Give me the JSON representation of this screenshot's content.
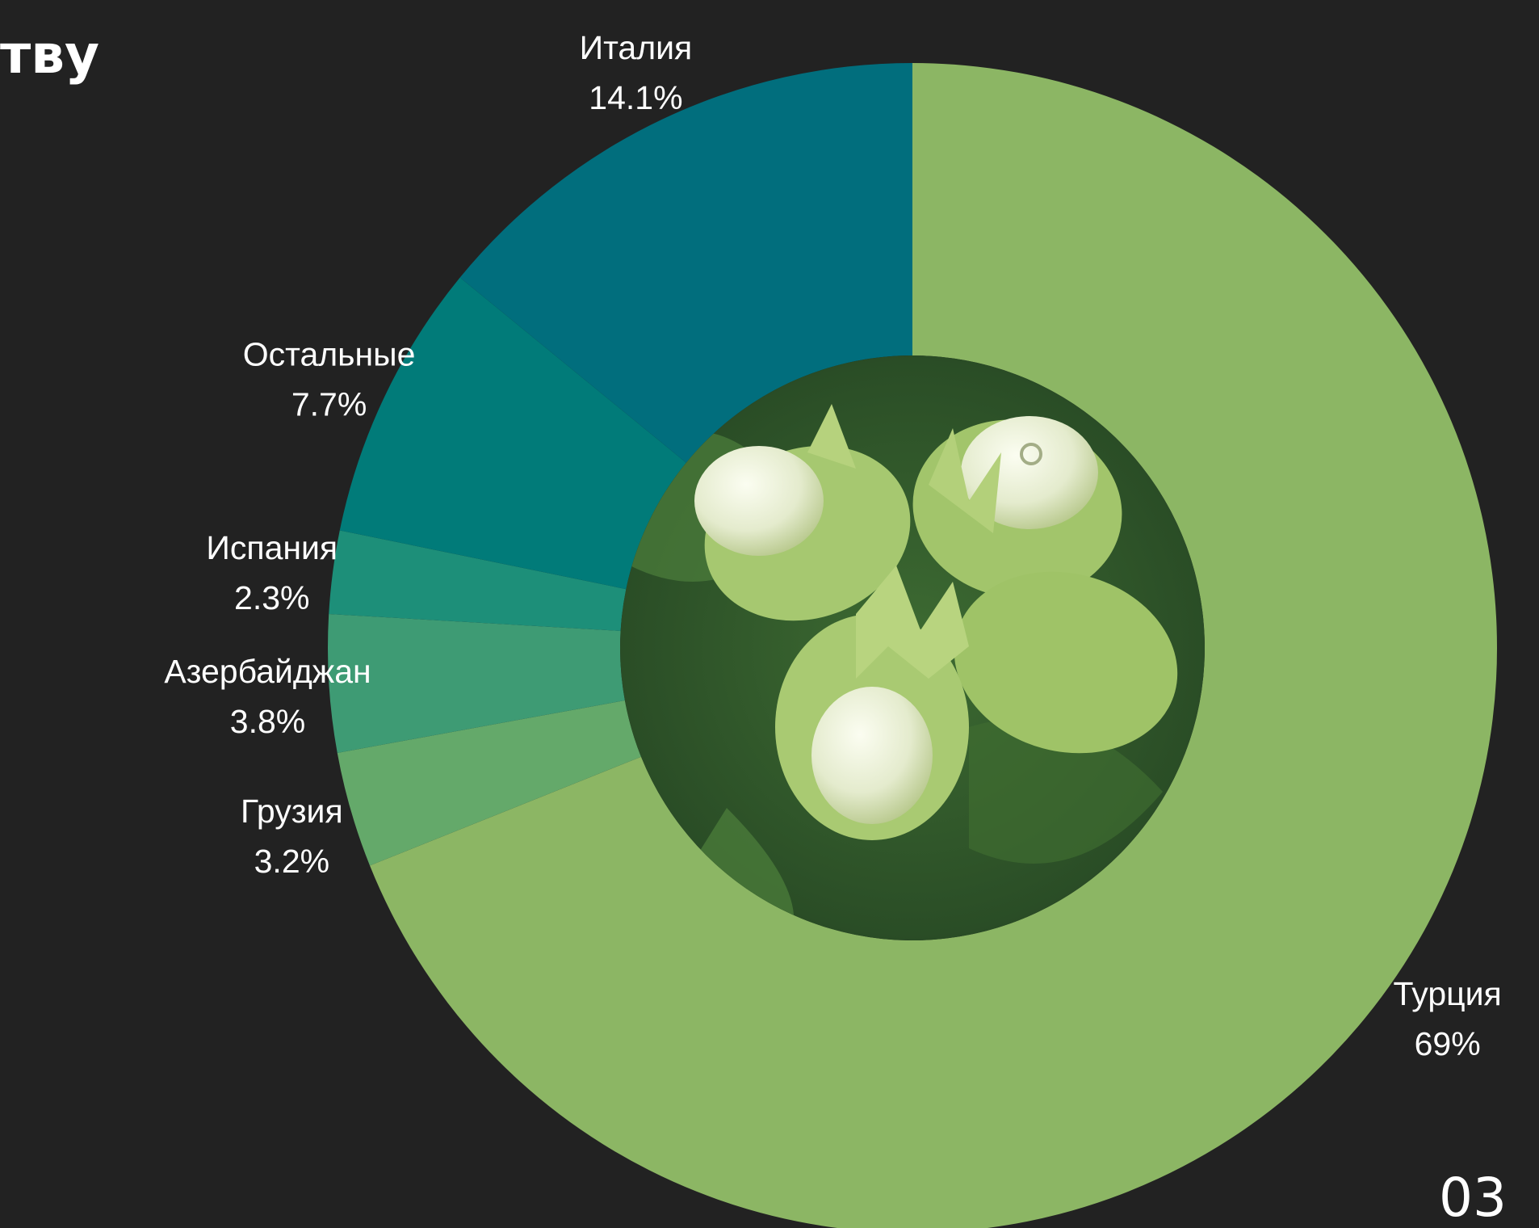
{
  "slide": {
    "title_fragment": "тву",
    "page_number": "03",
    "background_color": "#222222"
  },
  "center_image": {
    "subject": "green hazelnut cluster with leafy husks",
    "icon": "hazelnut-photo"
  },
  "chart_data": {
    "type": "pie",
    "style": "donut",
    "title": "",
    "start": "12 o'clock",
    "direction": "clockwise",
    "legend": "none (direct labels outside slices)",
    "slices": [
      {
        "label": "Турция",
        "value": 69,
        "value_label": "69%",
        "color": "#8cb664"
      },
      {
        "label": "Грузия",
        "value": 3.2,
        "value_label": "3.2%",
        "color": "#64a96a"
      },
      {
        "label": "Азербайджан",
        "value": 3.8,
        "value_label": "3.8%",
        "color": "#3e9b74"
      },
      {
        "label": "Испания",
        "value": 2.3,
        "value_label": "2.3%",
        "color": "#1d8f79"
      },
      {
        "label": "Остальные",
        "value": 7.7,
        "value_label": "7.7%",
        "color": "#017b79"
      },
      {
        "label": "Италия",
        "value": 14.1,
        "value_label": "14.1%",
        "color": "#016e7d"
      }
    ]
  }
}
